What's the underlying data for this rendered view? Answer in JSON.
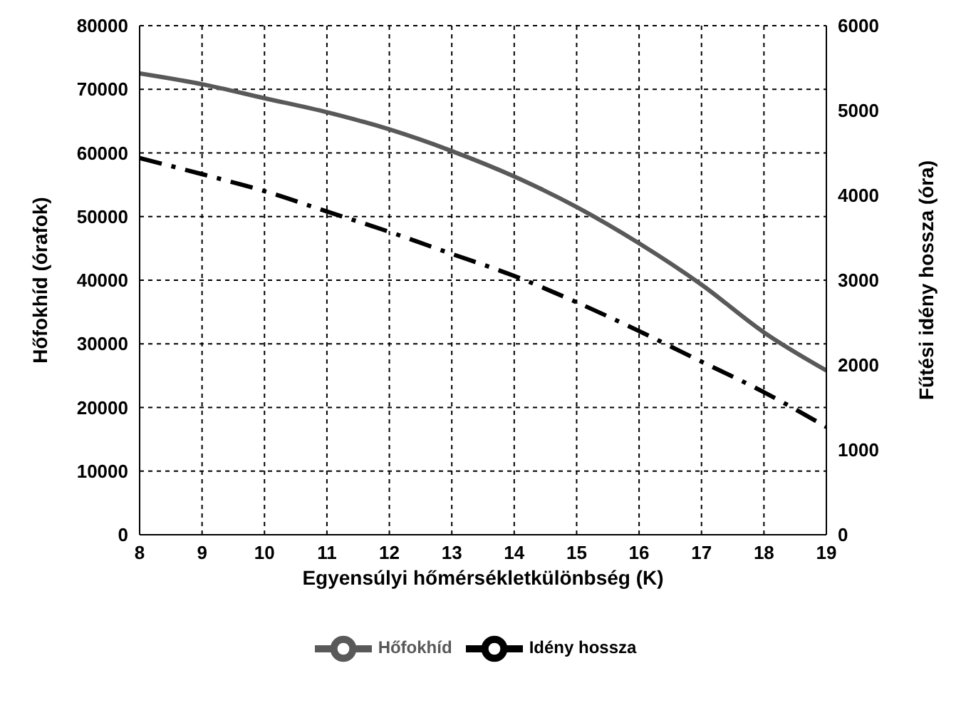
{
  "chart_data": {
    "type": "line",
    "xlabel": "Egyensúlyi hőmérsékletkülönbség (K)",
    "ylabel": "Hőfokhíd (órafok)",
    "y2label": "Fűtési idény hossza (óra)",
    "x": [
      8,
      9,
      10,
      11,
      12,
      13,
      14,
      15,
      16,
      17,
      18,
      19
    ],
    "series": [
      {
        "name": "Hőfokhíd",
        "color": "#595959",
        "line_style": "solid",
        "values": [
          72500,
          70800,
          68600,
          66400,
          63700,
          60300,
          56300,
          51500,
          45800,
          39300,
          31800,
          25800
        ]
      },
      {
        "name": "Idény hossza",
        "color": "#000000",
        "line_style": "dashed",
        "axis": "y2",
        "values": [
          4440,
          4250,
          4050,
          3810,
          3570,
          3310,
          3050,
          2740,
          2400,
          2040,
          1680,
          1270
        ]
      }
    ],
    "xlim": [
      8,
      19
    ],
    "xticks": [
      8,
      9,
      10,
      11,
      12,
      13,
      14,
      15,
      16,
      17,
      18,
      19
    ],
    "ylim": [
      0,
      80000
    ],
    "yticks": [
      0,
      10000,
      20000,
      30000,
      40000,
      50000,
      60000,
      70000,
      80000
    ],
    "y2lim": [
      0,
      6000
    ],
    "y2ticks": [
      0,
      1000,
      2000,
      3000,
      4000,
      5000,
      6000
    ],
    "grid": true,
    "legend": "bottom",
    "marker": "none"
  }
}
